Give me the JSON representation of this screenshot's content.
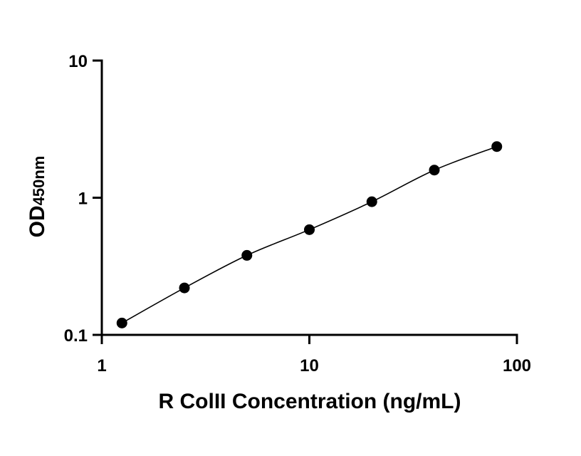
{
  "chart_data": {
    "type": "scatter",
    "title": "",
    "xlabel": "R ColII Concentration (ng/mL)",
    "ylabel": {
      "main": "OD",
      "subscript": "450nm"
    },
    "x_scale": "log",
    "y_scale": "log",
    "xlim": [
      1,
      100
    ],
    "ylim": [
      0.1,
      10
    ],
    "x_ticks": [
      1,
      10,
      100
    ],
    "x_tick_labels": [
      "1",
      "10",
      "100"
    ],
    "y_ticks": [
      0.1,
      1,
      10
    ],
    "y_tick_labels": [
      "0.1",
      "1",
      "10"
    ],
    "grid": false,
    "legend": "none",
    "fit_line": true,
    "series": [
      {
        "x": [
          1.25,
          2.5,
          5,
          10,
          20,
          40,
          80
        ],
        "y": [
          0.122,
          0.22,
          0.38,
          0.585,
          0.935,
          1.59,
          2.36
        ]
      }
    ],
    "colors": {
      "marker": "#000000",
      "line": "#000000",
      "axis": "#000000"
    }
  }
}
